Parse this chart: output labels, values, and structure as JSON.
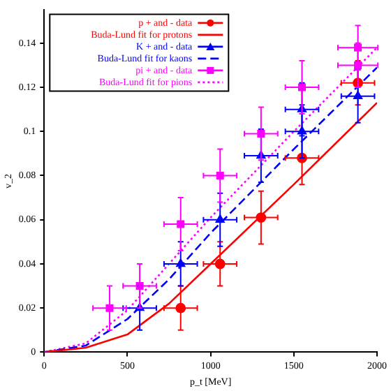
{
  "chart_data": {
    "type": "scatter",
    "xlabel": "p_t [MeV]",
    "ylabel": "v_2",
    "xlim": [
      0,
      2000
    ],
    "xticks": [
      0,
      500,
      1000,
      1500,
      2000
    ],
    "ylim": [
      0,
      0.155
    ],
    "yticks": [
      0,
      0.02,
      0.04,
      0.06,
      0.08,
      0.1,
      0.12,
      0.14
    ],
    "grid": false,
    "legend": "top left",
    "series": [
      {
        "name": "p + and - data",
        "marker": "circle",
        "color": "#ff0000",
        "x": [
          820,
          1057,
          1303,
          1549,
          1885
        ],
        "values": [
          0.02,
          0.04,
          0.061,
          0.088,
          0.122
        ],
        "errors": [
          0.01,
          0.01,
          0.012,
          0.012,
          0.01
        ],
        "xerrors": [
          100,
          100,
          100,
          100,
          100
        ]
      },
      {
        "name": "Buda-Lund fit for protons",
        "type": "line",
        "line_style": "solid",
        "color": "#ff0000",
        "x": [
          0,
          250,
          500,
          750,
          1000,
          1500,
          2000
        ],
        "values": [
          0,
          0.002,
          0.008,
          0.022,
          0.04,
          0.076,
          0.113
        ]
      },
      {
        "name": "K + and - data",
        "marker": "triangle",
        "color": "#0000ff",
        "x": [
          574,
          820,
          1057,
          1303,
          1549,
          1549,
          1885
        ],
        "values": [
          0.02,
          0.04,
          0.06,
          0.089,
          0.1,
          0.11,
          0.116
        ],
        "errors": [
          0.01,
          0.01,
          0.012,
          0.012,
          0.012,
          0.012,
          0.012
        ],
        "xerrors": [
          100,
          100,
          100,
          100,
          100,
          100,
          100
        ]
      },
      {
        "name": "Buda-Lund fit for kaons",
        "type": "line",
        "line_style": "dashed",
        "color": "#0000ff",
        "x": [
          0,
          250,
          500,
          750,
          1000,
          1500,
          2000
        ],
        "values": [
          0,
          0.003,
          0.015,
          0.033,
          0.054,
          0.092,
          0.129
        ]
      },
      {
        "name": "pi + and - data",
        "marker": "square",
        "color": "#ff00ff",
        "x": [
          393,
          574,
          820,
          1057,
          1303,
          1549,
          1885,
          1885
        ],
        "values": [
          0.02,
          0.03,
          0.058,
          0.08,
          0.099,
          0.12,
          0.13,
          0.138
        ],
        "errors": [
          0.01,
          0.01,
          0.012,
          0.012,
          0.012,
          0.012,
          0.01,
          0.01
        ],
        "xerrors": [
          100,
          100,
          100,
          100,
          100,
          100,
          120,
          120
        ]
      },
      {
        "name": "Buda-Lund fit for pions",
        "type": "line",
        "line_style": "dotted",
        "color": "#ff00ff",
        "x": [
          0,
          250,
          500,
          750,
          1000,
          1500,
          2000
        ],
        "values": [
          0,
          0.004,
          0.019,
          0.04,
          0.061,
          0.1,
          0.138
        ]
      }
    ]
  }
}
